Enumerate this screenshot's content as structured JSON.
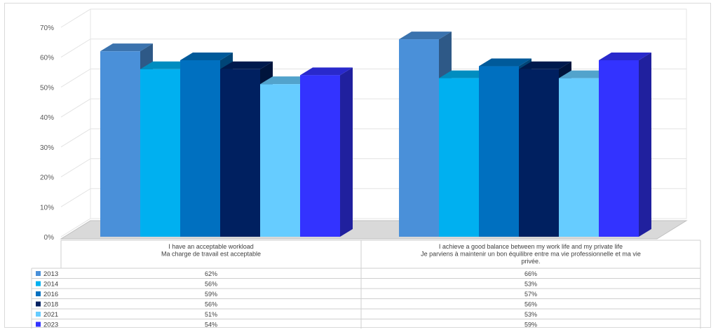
{
  "chart_data": {
    "type": "bar",
    "subtype": "3d-clustered-column-with-data-table",
    "title": "",
    "ylim": [
      0,
      70
    ],
    "y_ticks": [
      "0%",
      "10%",
      "20%",
      "30%",
      "40%",
      "50%",
      "60%",
      "70%"
    ],
    "grid": true,
    "legend": "data-table",
    "categories": [
      [
        "I have an acceptable workload",
        "Ma charge de travail est acceptable"
      ],
      [
        "I achieve a good balance between my work life and my private life",
        "Je parviens à maintenir un bon équilibre entre ma vie professionnelle et ma vie",
        "privée."
      ]
    ],
    "series": [
      {
        "name": "2013",
        "color": "#4a90d9",
        "values": [
          62,
          66
        ],
        "labels": [
          "62%",
          "66%"
        ]
      },
      {
        "name": "2014",
        "color": "#00b0f0",
        "values": [
          56,
          53
        ],
        "labels": [
          "56%",
          "53%"
        ]
      },
      {
        "name": "2016",
        "color": "#0070c0",
        "values": [
          59,
          57
        ],
        "labels": [
          "59%",
          "57%"
        ]
      },
      {
        "name": "2018",
        "color": "#002060",
        "values": [
          56,
          56
        ],
        "labels": [
          "56%",
          "56%"
        ]
      },
      {
        "name": "2021",
        "color": "#66ccff",
        "values": [
          51,
          53
        ],
        "labels": [
          "51%",
          "53%"
        ]
      },
      {
        "name": "2023",
        "color": "#3333ff",
        "values": [
          54,
          59
        ],
        "labels": [
          "54%",
          "59%"
        ]
      }
    ]
  }
}
